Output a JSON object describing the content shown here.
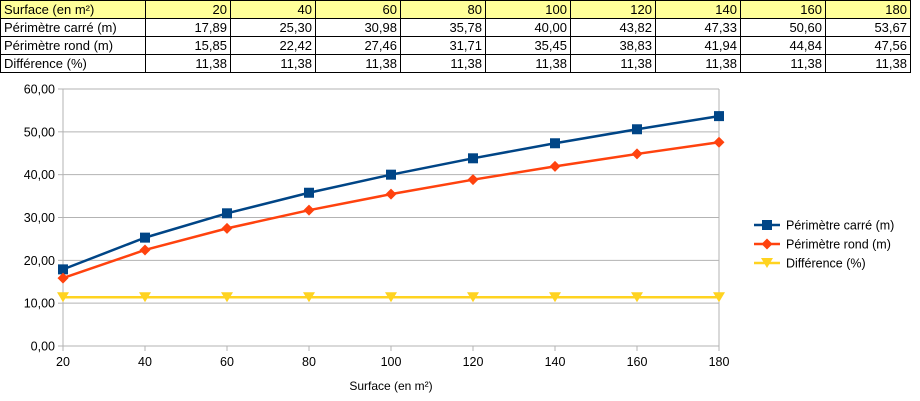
{
  "table": {
    "header": {
      "label": "Surface (en m²)",
      "values": [
        "20",
        "40",
        "60",
        "80",
        "100",
        "120",
        "140",
        "160",
        "180"
      ]
    },
    "rows": [
      {
        "label": "Périmètre carré (m)",
        "values": [
          "17,89",
          "25,30",
          "30,98",
          "35,78",
          "40,00",
          "43,82",
          "47,33",
          "50,60",
          "53,67"
        ]
      },
      {
        "label": "Périmètre rond (m)",
        "values": [
          "15,85",
          "22,42",
          "27,46",
          "31,71",
          "35,45",
          "38,83",
          "41,94",
          "44,84",
          "47,56"
        ]
      },
      {
        "label": "Différence (%)",
        "values": [
          "11,38",
          "11,38",
          "11,38",
          "11,38",
          "11,38",
          "11,38",
          "11,38",
          "11,38",
          "11,38"
        ]
      }
    ]
  },
  "chart_data": {
    "type": "line",
    "title": "",
    "xlabel": "Surface (en m²)",
    "ylabel": "",
    "x": [
      20,
      40,
      60,
      80,
      100,
      120,
      140,
      160,
      180
    ],
    "xticks": [
      "20",
      "40",
      "60",
      "80",
      "100",
      "120",
      "140",
      "160",
      "180"
    ],
    "ylim": [
      0,
      60
    ],
    "yticks": [
      "0,00",
      "10,00",
      "20,00",
      "30,00",
      "40,00",
      "50,00",
      "60,00"
    ],
    "grid": "horizontal",
    "legend": "right",
    "series": [
      {
        "name": "Périmètre carré (m)",
        "color": "#004586",
        "marker": "square",
        "values": [
          17.89,
          25.3,
          30.98,
          35.78,
          40.0,
          43.82,
          47.33,
          50.6,
          53.67
        ]
      },
      {
        "name": "Périmètre rond (m)",
        "color": "#ff420e",
        "marker": "diamond",
        "values": [
          15.85,
          22.42,
          27.46,
          31.71,
          35.45,
          38.83,
          41.94,
          44.84,
          47.56
        ]
      },
      {
        "name": "Différence (%)",
        "color": "#ffd320",
        "marker": "triangle-down",
        "values": [
          11.38,
          11.38,
          11.38,
          11.38,
          11.38,
          11.38,
          11.38,
          11.38,
          11.38
        ]
      }
    ]
  }
}
